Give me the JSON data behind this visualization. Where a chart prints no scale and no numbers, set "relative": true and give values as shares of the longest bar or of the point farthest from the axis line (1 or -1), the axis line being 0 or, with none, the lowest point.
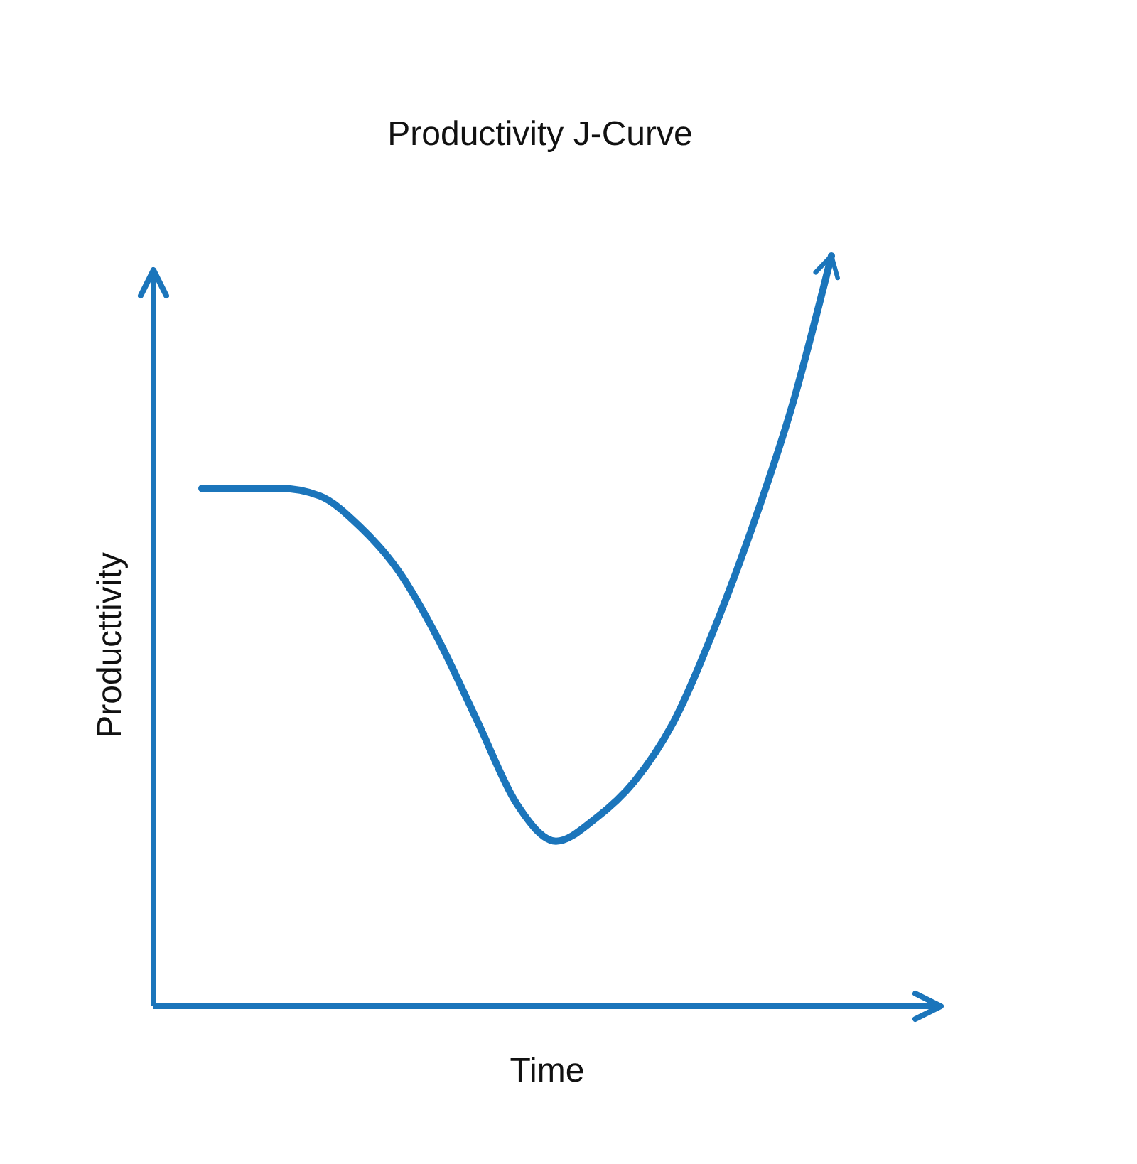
{
  "chart_data": {
    "type": "line",
    "title": "Productivity J-Curve",
    "xlabel": "Time",
    "ylabel": "Producttivity",
    "relative": true,
    "categories": [
      null,
      null,
      null,
      null,
      null,
      null,
      null,
      null,
      null,
      null,
      null,
      null,
      null,
      null,
      null,
      null,
      null
    ],
    "series": [
      {
        "color": "#1b75bb",
        "values": [
          0.69,
          0.69,
          0.69,
          0.68,
          0.64,
          0.58,
          0.49,
          0.38,
          0.27,
          0.22,
          0.25,
          0.3,
          0.38,
          0.5,
          0.64,
          0.8,
          1
        ]
      }
    ]
  }
}
